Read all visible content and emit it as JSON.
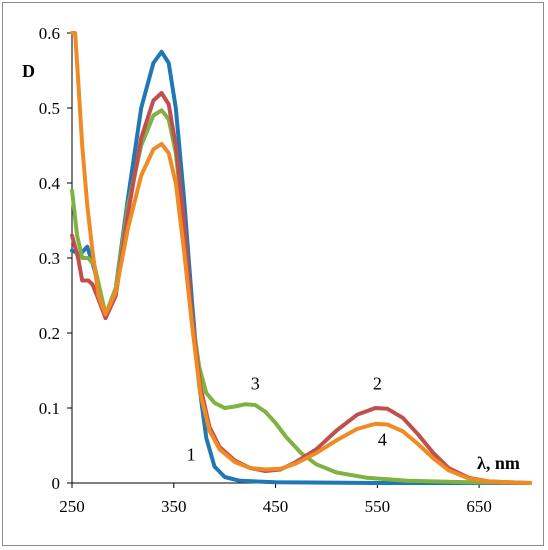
{
  "chart_data": {
    "type": "line",
    "title": "",
    "xlabel": "λ, nm",
    "ylabel": "D",
    "xlim": [
      250,
      700
    ],
    "ylim": [
      0,
      0.6
    ],
    "xticks": [
      250,
      350,
      450,
      550,
      650
    ],
    "yticks": [
      0,
      0.1,
      0.2,
      0.3,
      0.4,
      0.5,
      0.6
    ],
    "xtick_labels": [
      "250",
      "350",
      "450",
      "550",
      "650"
    ],
    "ytick_labels": [
      "0",
      "0.1",
      "0.2",
      "0.3",
      "0.4",
      "0.5",
      "0.6"
    ],
    "grid": false,
    "legend": "none",
    "series": [
      {
        "label": "1",
        "color": "#1f77b4",
        "points": [
          [
            250,
            0.31
          ],
          [
            258,
            0.305
          ],
          [
            265,
            0.315
          ],
          [
            272,
            0.285
          ],
          [
            283,
            0.22
          ],
          [
            293,
            0.26
          ],
          [
            305,
            0.38
          ],
          [
            318,
            0.5
          ],
          [
            330,
            0.56
          ],
          [
            338,
            0.575
          ],
          [
            345,
            0.56
          ],
          [
            352,
            0.5
          ],
          [
            360,
            0.38
          ],
          [
            368,
            0.24
          ],
          [
            375,
            0.13
          ],
          [
            382,
            0.06
          ],
          [
            390,
            0.022
          ],
          [
            400,
            0.008
          ],
          [
            415,
            0.003
          ],
          [
            450,
            0.001
          ],
          [
            550,
            0.0
          ],
          [
            650,
            0.0
          ],
          [
            700,
            0.0
          ]
        ]
      },
      {
        "label": "2",
        "color": "#c0504d",
        "points": [
          [
            250,
            0.33
          ],
          [
            256,
            0.3
          ],
          [
            260,
            0.27
          ],
          [
            266,
            0.27
          ],
          [
            270,
            0.265
          ],
          [
            276,
            0.245
          ],
          [
            283,
            0.22
          ],
          [
            293,
            0.25
          ],
          [
            305,
            0.36
          ],
          [
            318,
            0.46
          ],
          [
            330,
            0.51
          ],
          [
            338,
            0.52
          ],
          [
            345,
            0.505
          ],
          [
            352,
            0.45
          ],
          [
            360,
            0.35
          ],
          [
            368,
            0.22
          ],
          [
            376,
            0.13
          ],
          [
            385,
            0.075
          ],
          [
            395,
            0.048
          ],
          [
            410,
            0.03
          ],
          [
            425,
            0.02
          ],
          [
            440,
            0.016
          ],
          [
            455,
            0.018
          ],
          [
            470,
            0.028
          ],
          [
            490,
            0.045
          ],
          [
            510,
            0.07
          ],
          [
            530,
            0.091
          ],
          [
            548,
            0.1
          ],
          [
            560,
            0.099
          ],
          [
            575,
            0.087
          ],
          [
            590,
            0.065
          ],
          [
            605,
            0.04
          ],
          [
            620,
            0.02
          ],
          [
            640,
            0.007
          ],
          [
            660,
            0.002
          ],
          [
            700,
            0.0
          ]
        ]
      },
      {
        "label": "3",
        "color": "#7fb241",
        "points": [
          [
            250,
            0.39
          ],
          [
            255,
            0.33
          ],
          [
            260,
            0.3
          ],
          [
            266,
            0.3
          ],
          [
            272,
            0.29
          ],
          [
            283,
            0.225
          ],
          [
            293,
            0.26
          ],
          [
            305,
            0.37
          ],
          [
            318,
            0.45
          ],
          [
            330,
            0.49
          ],
          [
            338,
            0.497
          ],
          [
            345,
            0.485
          ],
          [
            352,
            0.44
          ],
          [
            360,
            0.34
          ],
          [
            368,
            0.22
          ],
          [
            375,
            0.155
          ],
          [
            382,
            0.12
          ],
          [
            390,
            0.107
          ],
          [
            400,
            0.1
          ],
          [
            410,
            0.102
          ],
          [
            420,
            0.105
          ],
          [
            430,
            0.104
          ],
          [
            440,
            0.095
          ],
          [
            450,
            0.08
          ],
          [
            460,
            0.062
          ],
          [
            475,
            0.04
          ],
          [
            490,
            0.025
          ],
          [
            510,
            0.014
          ],
          [
            540,
            0.007
          ],
          [
            580,
            0.003
          ],
          [
            640,
            0.001
          ],
          [
            700,
            0.0
          ]
        ]
      },
      {
        "label": "4",
        "color": "#f08a24",
        "points": [
          [
            250,
            0.6
          ],
          [
            253,
            0.6
          ],
          [
            255,
            0.56
          ],
          [
            260,
            0.45
          ],
          [
            265,
            0.37
          ],
          [
            270,
            0.31
          ],
          [
            276,
            0.25
          ],
          [
            283,
            0.225
          ],
          [
            293,
            0.255
          ],
          [
            305,
            0.34
          ],
          [
            318,
            0.41
          ],
          [
            330,
            0.445
          ],
          [
            338,
            0.452
          ],
          [
            345,
            0.44
          ],
          [
            352,
            0.4
          ],
          [
            360,
            0.31
          ],
          [
            368,
            0.21
          ],
          [
            376,
            0.12
          ],
          [
            385,
            0.07
          ],
          [
            395,
            0.045
          ],
          [
            410,
            0.028
          ],
          [
            425,
            0.02
          ],
          [
            440,
            0.018
          ],
          [
            455,
            0.019
          ],
          [
            470,
            0.026
          ],
          [
            490,
            0.04
          ],
          [
            510,
            0.057
          ],
          [
            530,
            0.072
          ],
          [
            548,
            0.079
          ],
          [
            560,
            0.078
          ],
          [
            575,
            0.069
          ],
          [
            590,
            0.052
          ],
          [
            605,
            0.033
          ],
          [
            620,
            0.017
          ],
          [
            640,
            0.006
          ],
          [
            660,
            0.002
          ],
          [
            700,
            0.0
          ]
        ]
      }
    ],
    "annotations": [
      {
        "text": "1",
        "x": 367,
        "y": 0.03
      },
      {
        "text": "2",
        "x": 550,
        "y": 0.125
      },
      {
        "text": "3",
        "x": 430,
        "y": 0.125
      },
      {
        "text": "4",
        "x": 555,
        "y": 0.05
      }
    ]
  }
}
